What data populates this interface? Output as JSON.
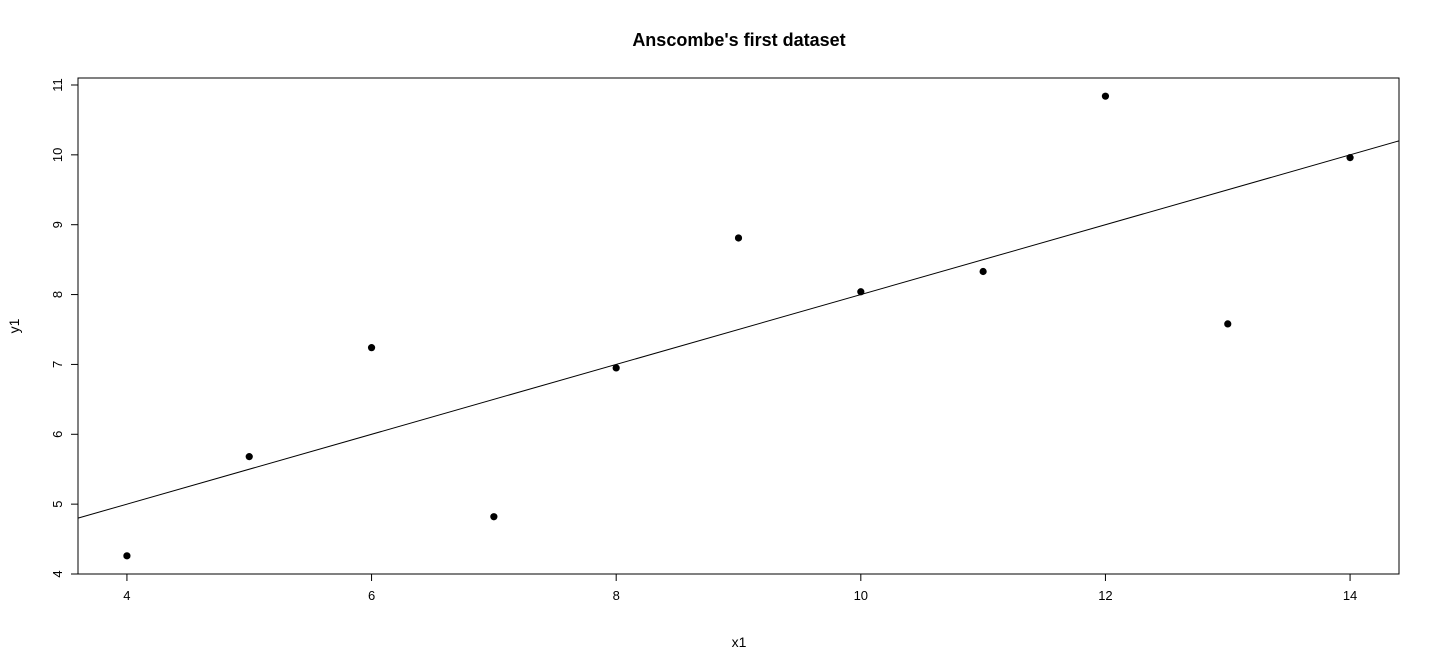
{
  "chart_data": {
    "type": "scatter",
    "title": "Anscombe's first dataset",
    "xlabel": "x1",
    "ylabel": "y1",
    "xlim": [
      3.6,
      14.4
    ],
    "ylim": [
      4,
      11.1
    ],
    "x_ticks": [
      4,
      6,
      8,
      10,
      12,
      14
    ],
    "y_ticks": [
      4,
      5,
      6,
      7,
      8,
      9,
      10,
      11
    ],
    "grid": false,
    "series": [
      {
        "x": [
          10,
          8,
          13,
          9,
          11,
          14,
          6,
          4,
          12,
          7,
          5
        ],
        "y": [
          8.04,
          6.95,
          7.58,
          8.81,
          8.33,
          9.96,
          7.24,
          4.26,
          10.84,
          4.82,
          5.68
        ]
      }
    ],
    "fit_line": {
      "intercept": 3.0,
      "slope": 0.5
    }
  }
}
